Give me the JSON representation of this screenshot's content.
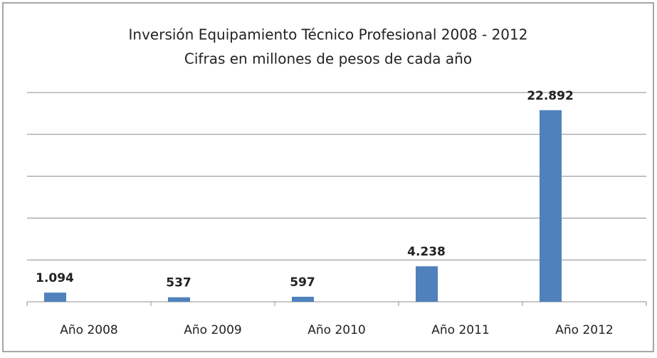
{
  "chart_data": {
    "type": "bar",
    "title": "Inversión Equipamiento Técnico Profesional 2008 - 2012",
    "subtitle": "Cifras en millones de pesos de cada año",
    "categories": [
      "Año 2008",
      "Año 2009",
      "Año 2010",
      "Año 2011",
      "Año 2012"
    ],
    "values": [
      1094,
      537,
      597,
      4238,
      22892
    ],
    "value_labels": [
      "1.094",
      "537",
      "597",
      "4.238",
      "22.892"
    ],
    "color": "#4f81bd",
    "ylim": [
      0,
      25000
    ],
    "yticks": [
      0,
      5000,
      10000,
      15000,
      20000,
      25000
    ],
    "grid": true
  }
}
